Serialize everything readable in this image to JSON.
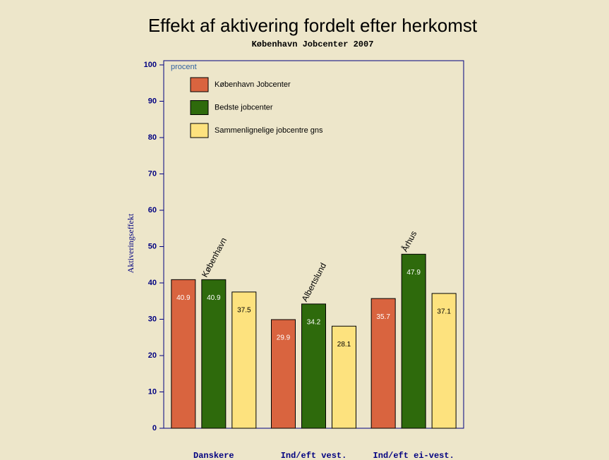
{
  "chart_data": {
    "type": "bar",
    "title": "Effekt af aktivering fordelt efter herkomst",
    "subtitle": "København Jobcenter 2007",
    "y_label": "Aktiveringseffekt",
    "y_unit": "procent",
    "categories": [
      "Danskere",
      "Ind/eft vest.",
      "Ind/eft ei-vest."
    ],
    "series": [
      {
        "name": "København Jobcenter",
        "color": "#d9643f",
        "values": [
          40.9,
          29.9,
          35.7
        ]
      },
      {
        "name": "Bedste jobcenter",
        "color": "#2e6a0c",
        "values": [
          40.9,
          34.2,
          47.9
        ]
      },
      {
        "name": "Sammenlignelige jobcentre gns",
        "color": "#fde27e",
        "values": [
          37.5,
          28.1,
          37.1
        ]
      }
    ],
    "annotations": [
      "København",
      "Albertslund",
      "Århus"
    ],
    "ylim": [
      0,
      100
    ],
    "yticks": [
      0,
      10,
      20,
      30,
      40,
      50,
      60,
      70,
      80,
      90,
      100
    ],
    "grid": false,
    "legend": "top-left"
  }
}
